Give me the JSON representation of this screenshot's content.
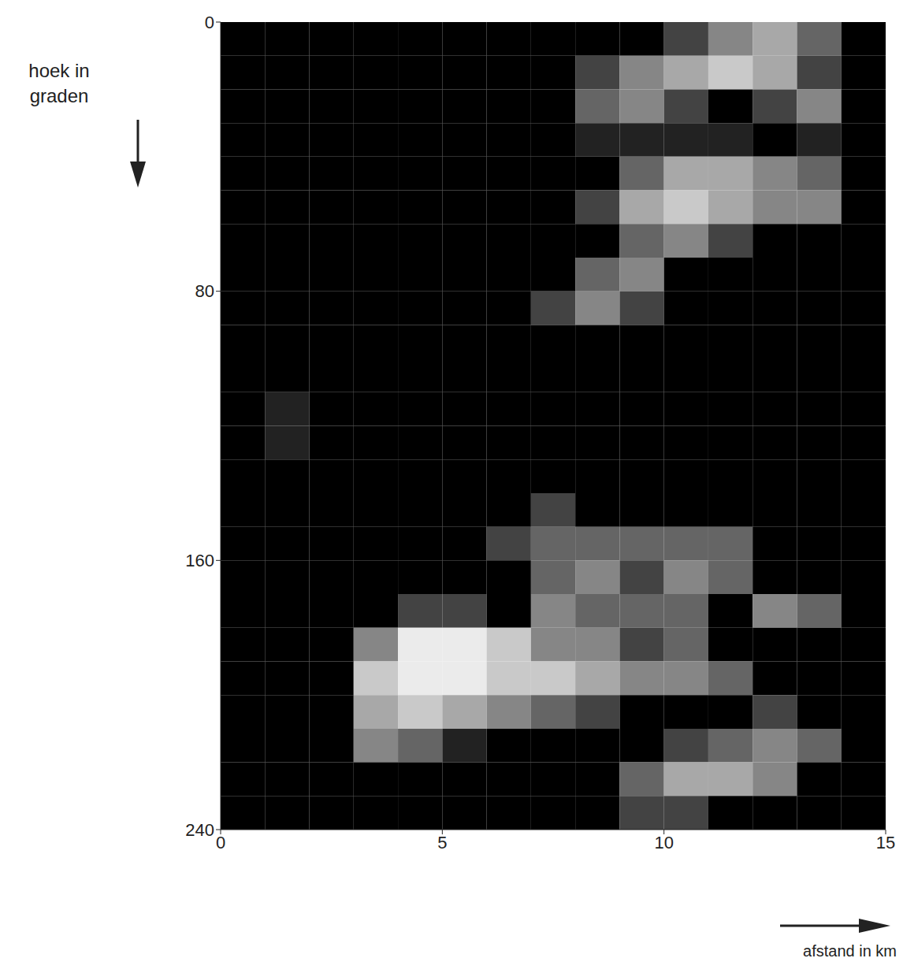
{
  "chart_data": {
    "type": "heatmap",
    "x_label": "afstand in km",
    "y_label": "hoek in graden",
    "xlim": [
      0,
      15
    ],
    "xticks": [
      0,
      5,
      10,
      15
    ],
    "ylim": [
      0,
      240
    ],
    "yticks": [
      0,
      80,
      160,
      240
    ],
    "x_edges": [
      0,
      1,
      2,
      3,
      4,
      5,
      6,
      7,
      8,
      9,
      10,
      11,
      12,
      13,
      14,
      15
    ],
    "y_edges": [
      0,
      10,
      20,
      30,
      40,
      50,
      60,
      70,
      80,
      90,
      100,
      110,
      120,
      130,
      140,
      150,
      160,
      170,
      180,
      190,
      200,
      210,
      220,
      230,
      240
    ],
    "cells": [
      [
        0,
        0,
        0,
        0,
        0,
        0,
        0,
        0,
        0,
        0,
        2,
        4,
        5,
        3,
        0
      ],
      [
        0,
        0,
        0,
        0,
        0,
        0,
        0,
        0,
        2,
        4,
        5,
        6,
        5,
        2,
        0
      ],
      [
        0,
        0,
        0,
        0,
        0,
        0,
        0,
        0,
        3,
        4,
        2,
        0,
        2,
        4,
        0
      ],
      [
        0,
        0,
        0,
        0,
        0,
        0,
        0,
        0,
        1,
        1,
        1,
        1,
        0,
        1,
        0
      ],
      [
        0,
        0,
        0,
        0,
        0,
        0,
        0,
        0,
        0,
        3,
        5,
        5,
        4,
        3,
        0
      ],
      [
        0,
        0,
        0,
        0,
        0,
        0,
        0,
        0,
        2,
        5,
        6,
        5,
        4,
        4,
        0
      ],
      [
        0,
        0,
        0,
        0,
        0,
        0,
        0,
        0,
        0,
        3,
        4,
        2,
        0,
        0,
        0
      ],
      [
        0,
        0,
        0,
        0,
        0,
        0,
        0,
        0,
        3,
        4,
        0,
        0,
        0,
        0,
        0
      ],
      [
        0,
        0,
        0,
        0,
        0,
        0,
        0,
        2,
        4,
        2,
        0,
        0,
        0,
        0,
        0
      ],
      [
        0,
        0,
        0,
        0,
        0,
        0,
        0,
        0,
        0,
        0,
        0,
        0,
        0,
        0,
        0
      ],
      [
        0,
        0,
        0,
        0,
        0,
        0,
        0,
        0,
        0,
        0,
        0,
        0,
        0,
        0,
        0
      ],
      [
        0,
        1,
        0,
        0,
        0,
        0,
        0,
        0,
        0,
        0,
        0,
        0,
        0,
        0,
        0
      ],
      [
        0,
        1,
        0,
        0,
        0,
        0,
        0,
        0,
        0,
        0,
        0,
        0,
        0,
        0,
        0
      ],
      [
        0,
        0,
        0,
        0,
        0,
        0,
        0,
        0,
        0,
        0,
        0,
        0,
        0,
        0,
        0
      ],
      [
        0,
        0,
        0,
        0,
        0,
        0,
        0,
        2,
        0,
        0,
        0,
        0,
        0,
        0,
        0
      ],
      [
        0,
        0,
        0,
        0,
        0,
        0,
        2,
        3,
        3,
        3,
        3,
        3,
        0,
        0,
        0
      ],
      [
        0,
        0,
        0,
        0,
        0,
        0,
        0,
        3,
        4,
        2,
        4,
        3,
        0,
        0,
        0
      ],
      [
        0,
        0,
        0,
        0,
        2,
        2,
        0,
        4,
        3,
        3,
        3,
        0,
        4,
        3,
        0
      ],
      [
        0,
        0,
        0,
        4,
        7,
        7,
        6,
        4,
        4,
        2,
        3,
        0,
        0,
        0,
        0
      ],
      [
        0,
        0,
        0,
        6,
        7,
        7,
        6,
        6,
        5,
        4,
        4,
        3,
        0,
        0,
        0
      ],
      [
        0,
        0,
        0,
        5,
        6,
        5,
        4,
        3,
        2,
        0,
        0,
        0,
        2,
        0,
        0
      ],
      [
        0,
        0,
        0,
        4,
        3,
        1,
        0,
        0,
        0,
        0,
        2,
        3,
        4,
        3,
        0
      ],
      [
        0,
        0,
        0,
        0,
        0,
        0,
        0,
        0,
        0,
        3,
        5,
        5,
        4,
        0,
        0
      ],
      [
        0,
        0,
        0,
        0,
        0,
        0,
        0,
        0,
        0,
        2,
        2,
        0,
        0,
        0,
        0
      ]
    ]
  }
}
